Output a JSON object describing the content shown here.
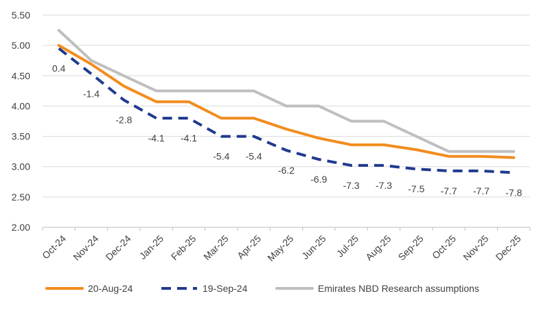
{
  "chart_data": {
    "type": "line",
    "categories": [
      "Oct-24",
      "Nov-24",
      "Dec-24",
      "Jan-25",
      "Feb-25",
      "Mar-25",
      "Apr-25",
      "May-25",
      "Jun-25",
      "Jul-25",
      "Aug-25",
      "Sep-25",
      "Oct-25",
      "Nov-25",
      "Dec-25"
    ],
    "ylim": [
      2.0,
      5.5
    ],
    "yticks": [
      "2.00",
      "2.50",
      "3.00",
      "3.50",
      "4.00",
      "4.50",
      "5.00",
      "5.50"
    ],
    "grid": true,
    "legend_position": "bottom",
    "series": [
      {
        "name": "20-Aug-24",
        "color": "#F28C1E",
        "dash": "solid",
        "values": [
          5.0,
          4.69,
          4.33,
          4.07,
          4.07,
          3.8,
          3.8,
          3.62,
          3.47,
          3.36,
          3.36,
          3.28,
          3.17,
          3.17,
          3.15
        ]
      },
      {
        "name": "19-Sep-24",
        "color": "#1F3A8F",
        "dash": "dashed",
        "values": [
          4.95,
          4.53,
          4.1,
          3.8,
          3.8,
          3.5,
          3.5,
          3.27,
          3.12,
          3.02,
          3.02,
          2.96,
          2.93,
          2.93,
          2.9
        ],
        "labels": [
          "0.4",
          "-1.4",
          "-2.8",
          "-4.1",
          "-4.1",
          "-5.4",
          "-5.4",
          "-6.2",
          "-6.9",
          "-7.3",
          "-7.3",
          "-7.5",
          "-7.7",
          "-7.7",
          "-7.8"
        ]
      },
      {
        "name": "Emirates NBD Research assumptions",
        "color": "#BFBFBF",
        "dash": "solid",
        "values": [
          5.25,
          4.75,
          4.5,
          4.25,
          4.25,
          4.25,
          4.25,
          4.0,
          4.0,
          3.75,
          3.75,
          3.5,
          3.25,
          3.25,
          3.25
        ]
      }
    ]
  }
}
